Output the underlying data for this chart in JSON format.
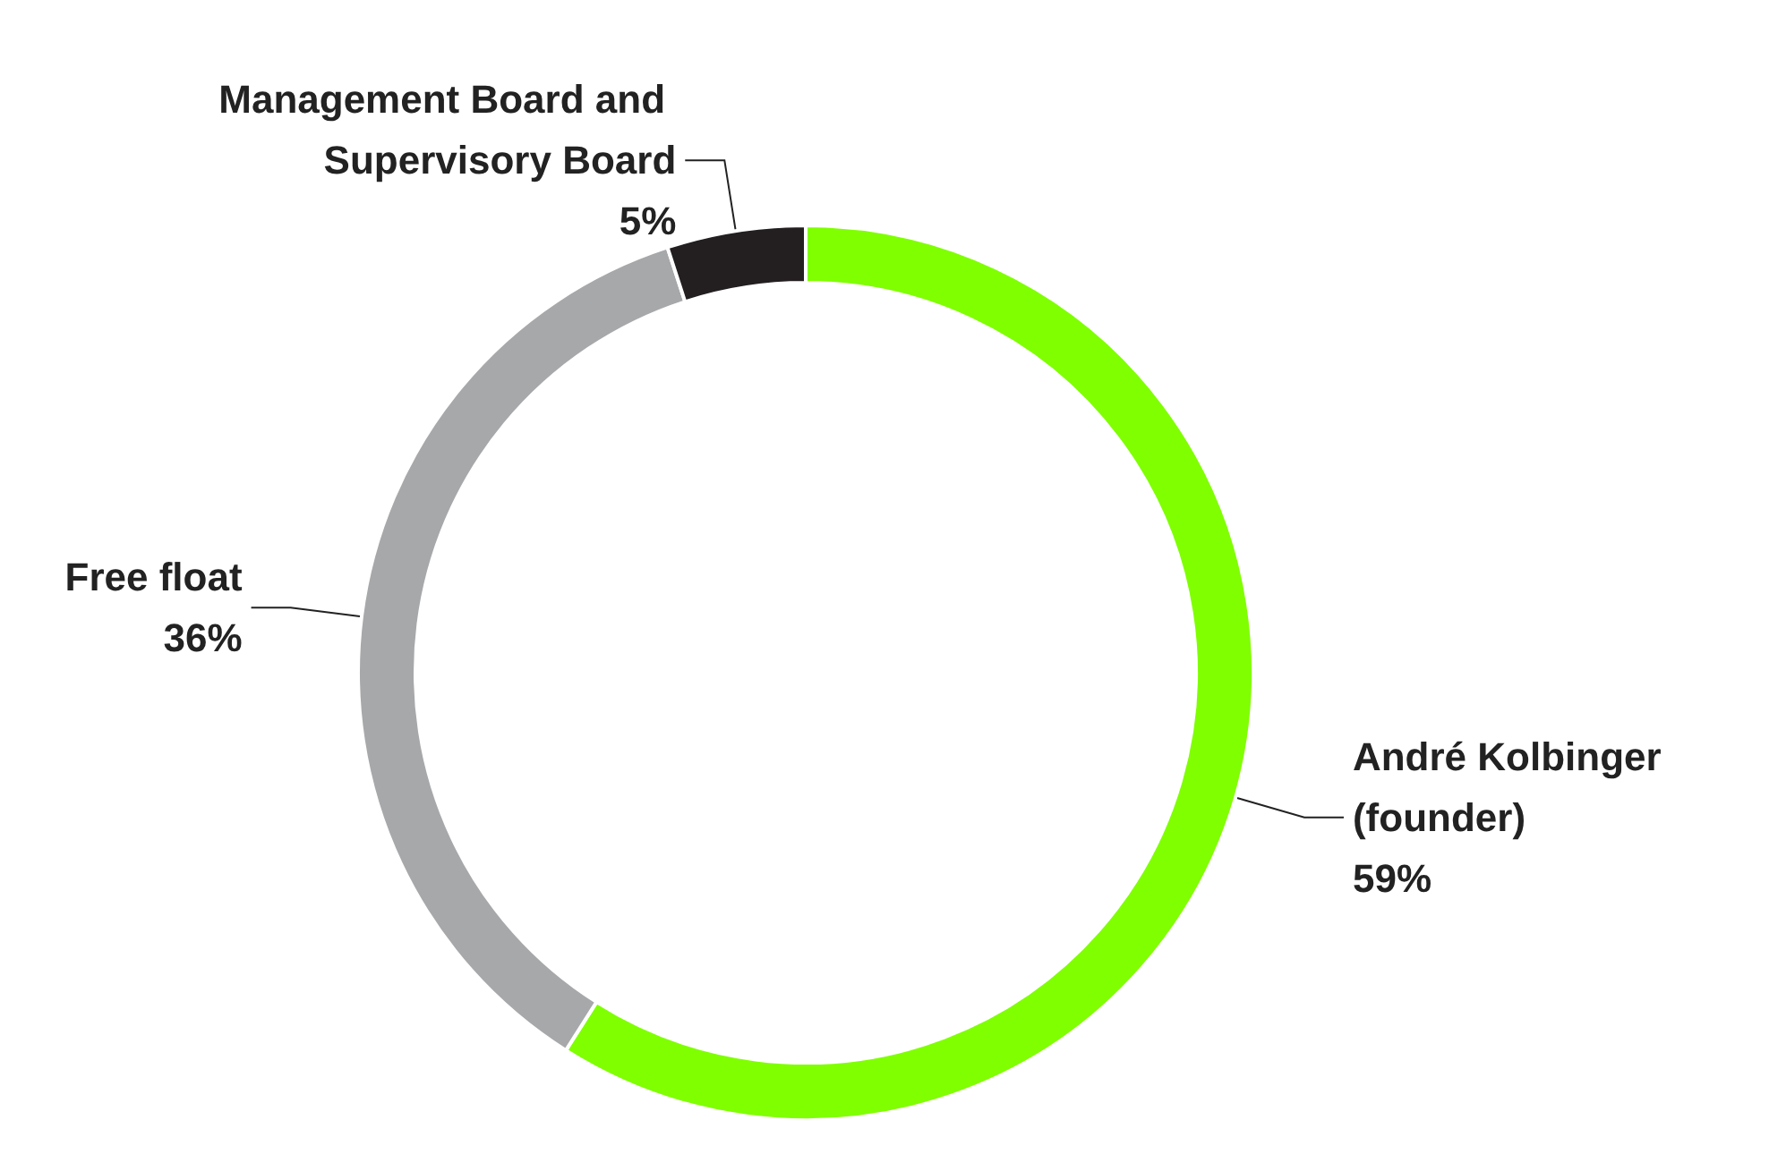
{
  "chart_data": {
    "type": "donut",
    "categories": [
      "André Kolbinger (founder)",
      "Free float",
      "Management Board and Supervisory Board"
    ],
    "values": [
      59,
      36,
      5
    ],
    "colors": [
      "#7fff00",
      "#a7a8aa",
      "#231f20"
    ],
    "value_labels": [
      "59%",
      "36%",
      "5%"
    ],
    "legend": false
  }
}
